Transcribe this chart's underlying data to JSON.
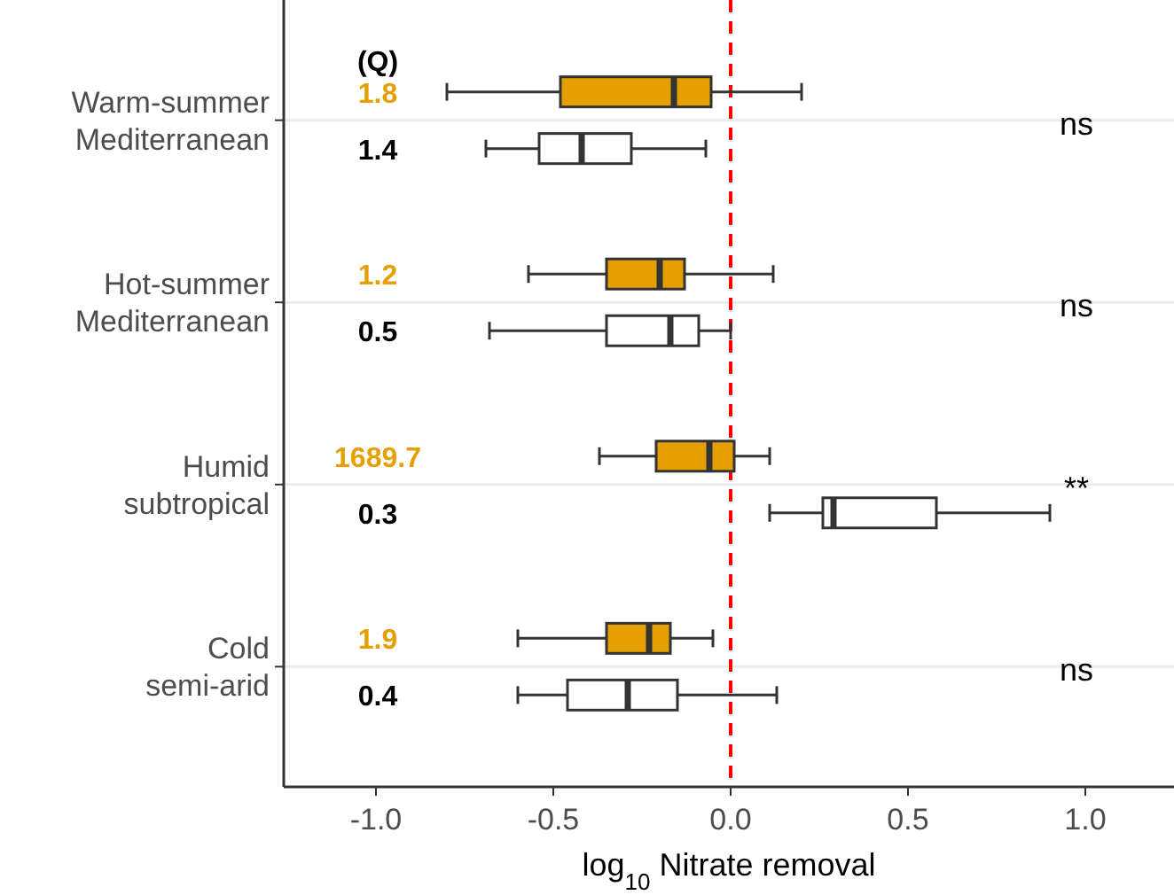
{
  "chart_data": {
    "type": "box",
    "orientation": "horizontal",
    "categories": [
      "Warm-summer Mediterranean",
      "Hot-summer Mediterranean",
      "Humid subtropical",
      "Cold semi-arid"
    ],
    "series": [
      {
        "color": "#e69f00",
        "value_labels": [
          "1.8",
          "1.2",
          "1689.7",
          "1.9"
        ],
        "boxes": [
          {
            "low": -0.8,
            "q1": -0.48,
            "median": -0.16,
            "q3": -0.055,
            "high": 0.2
          },
          {
            "low": -0.57,
            "q1": -0.35,
            "median": -0.2,
            "q3": -0.13,
            "high": 0.12
          },
          {
            "low": -0.37,
            "q1": -0.21,
            "median": -0.06,
            "q3": 0.01,
            "high": 0.11
          },
          {
            "low": -0.6,
            "q1": -0.35,
            "median": -0.23,
            "q3": -0.17,
            "high": -0.05
          }
        ]
      },
      {
        "color": "#ffffff",
        "value_labels": [
          "1.4",
          "0.5",
          "0.3",
          "0.4"
        ],
        "boxes": [
          {
            "low": -0.69,
            "q1": -0.54,
            "median": -0.42,
            "q3": -0.28,
            "high": -0.07
          },
          {
            "low": -0.68,
            "q1": -0.35,
            "median": -0.17,
            "q3": -0.09,
            "high": 0.0
          },
          {
            "low": 0.11,
            "q1": 0.26,
            "median": 0.29,
            "q3": 0.58,
            "high": 0.9
          },
          {
            "low": -0.6,
            "q1": -0.46,
            "median": -0.29,
            "q3": -0.15,
            "high": 0.13
          }
        ]
      }
    ],
    "xlabel": "log$_{10}$ Nitrate removal",
    "xlim": [
      -1.26,
      1.25
    ],
    "xticks": [
      {
        "value": -1,
        "label": "-1.0"
      },
      {
        "value": -0.5,
        "label": "-0.5"
      },
      {
        "value": 0,
        "label": "0.0"
      },
      {
        "value": 0.5,
        "label": "0.5"
      },
      {
        "value": 1,
        "label": "1.0"
      }
    ],
    "grid": "y",
    "ref_lines": [
      {
        "axis": "x",
        "value": 0,
        "color": "#ff0000",
        "line_style": "dashed"
      }
    ],
    "annotations": [
      "(Q)",
      "ns",
      "ns",
      "**",
      "ns"
    ]
  }
}
